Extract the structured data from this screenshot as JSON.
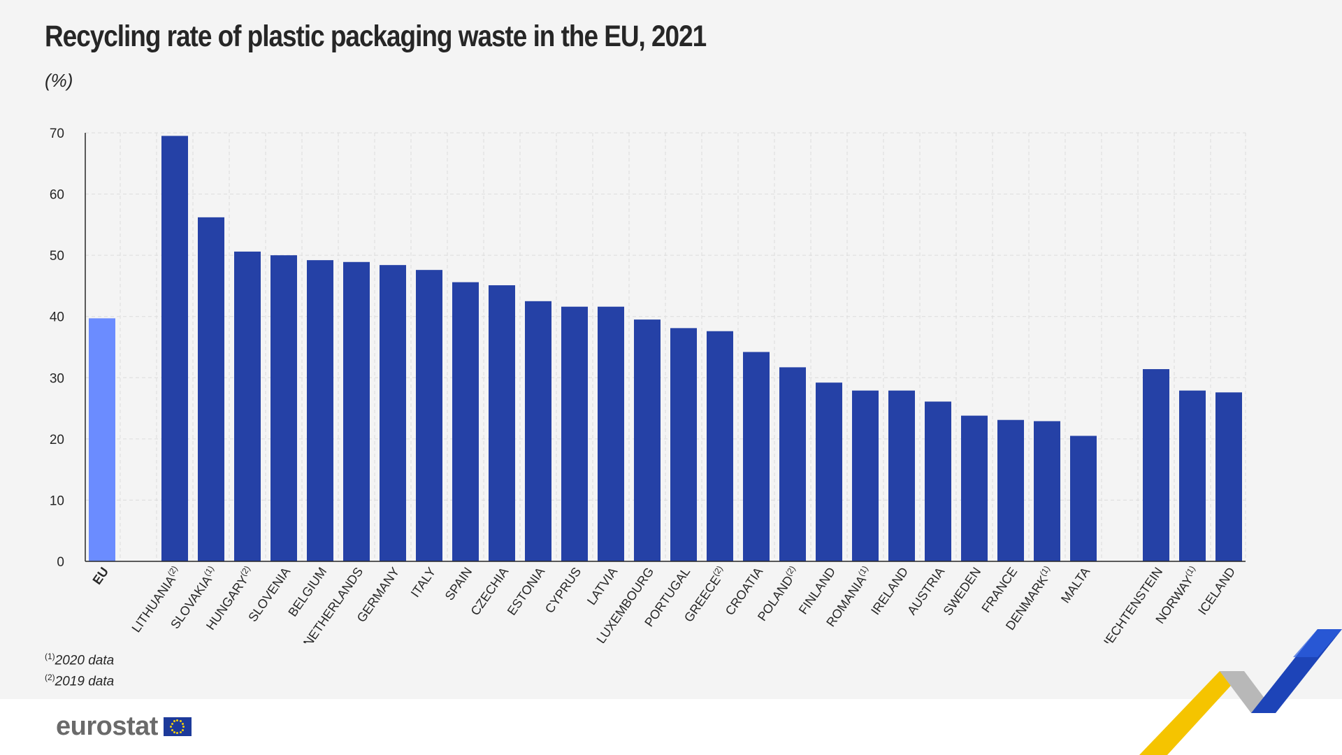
{
  "title": "Recycling rate of plastic packaging waste in the EU, 2021",
  "unit": "(%)",
  "footnotes": [
    {
      "mark": "(1)",
      "text": "2020 data"
    },
    {
      "mark": "(2)",
      "text": "2019 data"
    }
  ],
  "logo": {
    "text": "eurostat",
    "flag_icon": "eu-flag-icon"
  },
  "colors": {
    "eu_bar": "#6b8cff",
    "country_bar": "#2541a6",
    "grid": "#dcdcdc",
    "axis": "#262626"
  },
  "chart_data": {
    "type": "bar",
    "title": "Recycling rate of plastic packaging waste in the EU, 2021",
    "ylabel": "(%)",
    "xlabel": "",
    "ylim": [
      0,
      70
    ],
    "yticks": [
      0,
      10,
      20,
      30,
      40,
      50,
      60,
      70
    ],
    "grid": true,
    "bars": [
      {
        "label": "EU",
        "note": "",
        "value": 39.7,
        "group": "eu"
      },
      {
        "label": "LITHUANIA",
        "note": "(2)",
        "value": 69.5,
        "group": "member"
      },
      {
        "label": "SLOVAKIA",
        "note": "(1)",
        "value": 56.2,
        "group": "member"
      },
      {
        "label": "HUNGARY",
        "note": "(2)",
        "value": 50.6,
        "group": "member"
      },
      {
        "label": "SLOVENIA",
        "note": "",
        "value": 50.0,
        "group": "member"
      },
      {
        "label": "BELGIUM",
        "note": "",
        "value": 49.2,
        "group": "member"
      },
      {
        "label": "NETHERLANDS",
        "note": "",
        "value": 48.9,
        "group": "member"
      },
      {
        "label": "GERMANY",
        "note": "",
        "value": 48.4,
        "group": "member"
      },
      {
        "label": "ITALY",
        "note": "",
        "value": 47.6,
        "group": "member"
      },
      {
        "label": "SPAIN",
        "note": "",
        "value": 45.6,
        "group": "member"
      },
      {
        "label": "CZECHIA",
        "note": "",
        "value": 45.1,
        "group": "member"
      },
      {
        "label": "ESTONIA",
        "note": "",
        "value": 42.5,
        "group": "member"
      },
      {
        "label": "CYPRUS",
        "note": "",
        "value": 41.6,
        "group": "member"
      },
      {
        "label": "LATVIA",
        "note": "",
        "value": 41.6,
        "group": "member"
      },
      {
        "label": "LUXEMBOURG",
        "note": "",
        "value": 39.5,
        "group": "member"
      },
      {
        "label": "PORTUGAL",
        "note": "",
        "value": 38.1,
        "group": "member"
      },
      {
        "label": "GREECE",
        "note": "(2)",
        "value": 37.6,
        "group": "member"
      },
      {
        "label": "CROATIA",
        "note": "",
        "value": 34.2,
        "group": "member"
      },
      {
        "label": "POLAND",
        "note": "(2)",
        "value": 31.7,
        "group": "member"
      },
      {
        "label": "FINLAND",
        "note": "",
        "value": 29.2,
        "group": "member"
      },
      {
        "label": "ROMANIA",
        "note": "(1)",
        "value": 27.9,
        "group": "member"
      },
      {
        "label": "IRELAND",
        "note": "",
        "value": 27.9,
        "group": "member"
      },
      {
        "label": "AUSTRIA",
        "note": "",
        "value": 26.1,
        "group": "member"
      },
      {
        "label": "SWEDEN",
        "note": "",
        "value": 23.8,
        "group": "member"
      },
      {
        "label": "FRANCE",
        "note": "",
        "value": 23.1,
        "group": "member"
      },
      {
        "label": "DENMARK",
        "note": "(1)",
        "value": 22.9,
        "group": "member"
      },
      {
        "label": "MALTA",
        "note": "",
        "value": 20.5,
        "group": "member"
      },
      {
        "label": "LIECHTENSTEIN",
        "note": "",
        "value": 31.4,
        "group": "efta"
      },
      {
        "label": "NORWAY",
        "note": "(1)",
        "value": 27.9,
        "group": "efta"
      },
      {
        "label": "ICELAND",
        "note": "",
        "value": 27.6,
        "group": "efta"
      }
    ]
  }
}
